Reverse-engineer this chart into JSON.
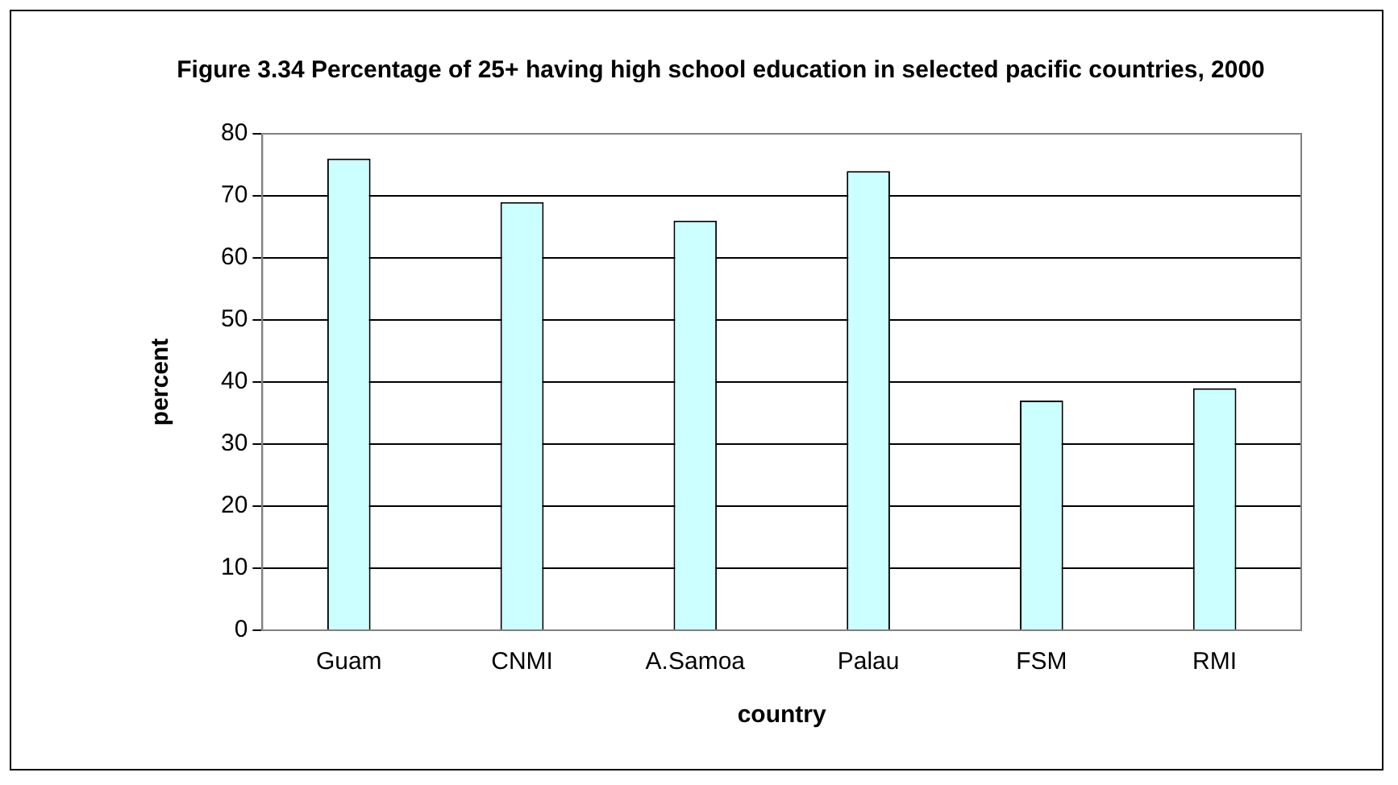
{
  "chart_data": {
    "type": "bar",
    "title": "Figure 3.34 Percentage of 25+ having high school education in selected pacific countries, 2000",
    "xlabel": "country",
    "ylabel": "percent",
    "categories": [
      "Guam",
      "CNMI",
      "A.Samoa",
      "Palau",
      "FSM",
      "RMI"
    ],
    "values": [
      76,
      69,
      66,
      74,
      37,
      39
    ],
    "color": "#ccffff",
    "ylim": [
      0,
      80
    ],
    "yticks": [
      0,
      10,
      20,
      30,
      40,
      50,
      60,
      70,
      80
    ],
    "grid": "y"
  }
}
